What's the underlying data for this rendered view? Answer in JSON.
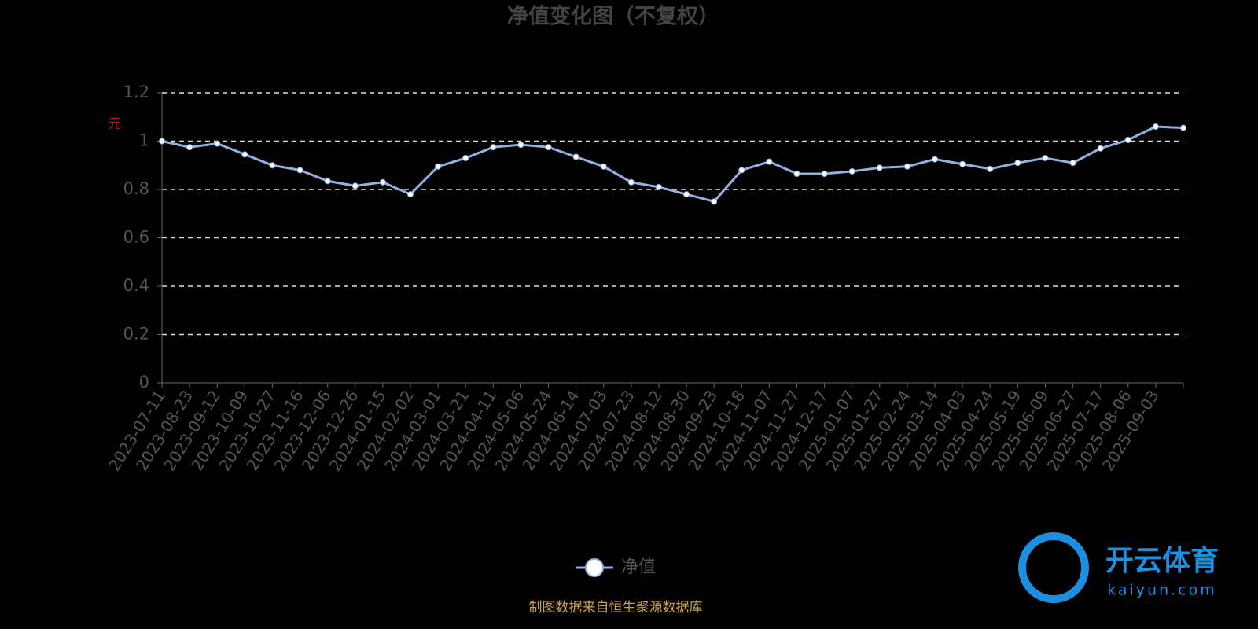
{
  "chart_data": {
    "type": "line",
    "title": "净值变化图（不复权）",
    "y_label": "元",
    "categories": [
      "2023-07-11",
      "2023-08-23",
      "2023-09-12",
      "2023-10-09",
      "2023-10-27",
      "2023-11-16",
      "2023-12-06",
      "2023-12-26",
      "2024-01-15",
      "2024-02-02",
      "2024-03-01",
      "2024-03-21",
      "2024-04-11",
      "2024-05-06",
      "2024-05-24",
      "2024-06-14",
      "2024-07-03",
      "2024-07-23",
      "2024-08-12",
      "2024-08-30",
      "2024-09-23",
      "2024-10-18",
      "2024-11-07",
      "2024-11-27",
      "2024-12-17",
      "2025-01-07",
      "2025-01-27",
      "2025-02-24",
      "2025-03-14",
      "2025-04-03",
      "2025-04-24",
      "2025-05-19",
      "2025-06-09",
      "2025-06-27",
      "2025-07-17",
      "2025-08-06",
      "2025-09-03",
      null
    ],
    "series": [
      {
        "name": "净值",
        "color": "#92b1e0",
        "values": [
          1.0,
          0.975,
          0.99,
          0.945,
          0.9,
          0.88,
          0.835,
          0.815,
          0.83,
          0.78,
          0.895,
          0.93,
          0.975,
          0.985,
          0.975,
          0.935,
          0.895,
          0.83,
          0.81,
          0.78,
          0.75,
          0.88,
          0.915,
          0.865,
          0.865,
          0.875,
          0.89,
          0.895,
          0.925,
          0.905,
          0.885,
          0.91,
          0.93,
          0.91,
          0.97,
          1.005,
          1.06,
          1.055
        ]
      }
    ],
    "ylim": [
      0,
      1.2
    ],
    "yticks": [
      0,
      0.2,
      0.4,
      0.6,
      0.8,
      1,
      1.2
    ],
    "grid": true,
    "source": "制图数据来自恒生聚源数据库",
    "watermark": {
      "brand": "开云体育",
      "site": "kaiyun.com"
    }
  }
}
